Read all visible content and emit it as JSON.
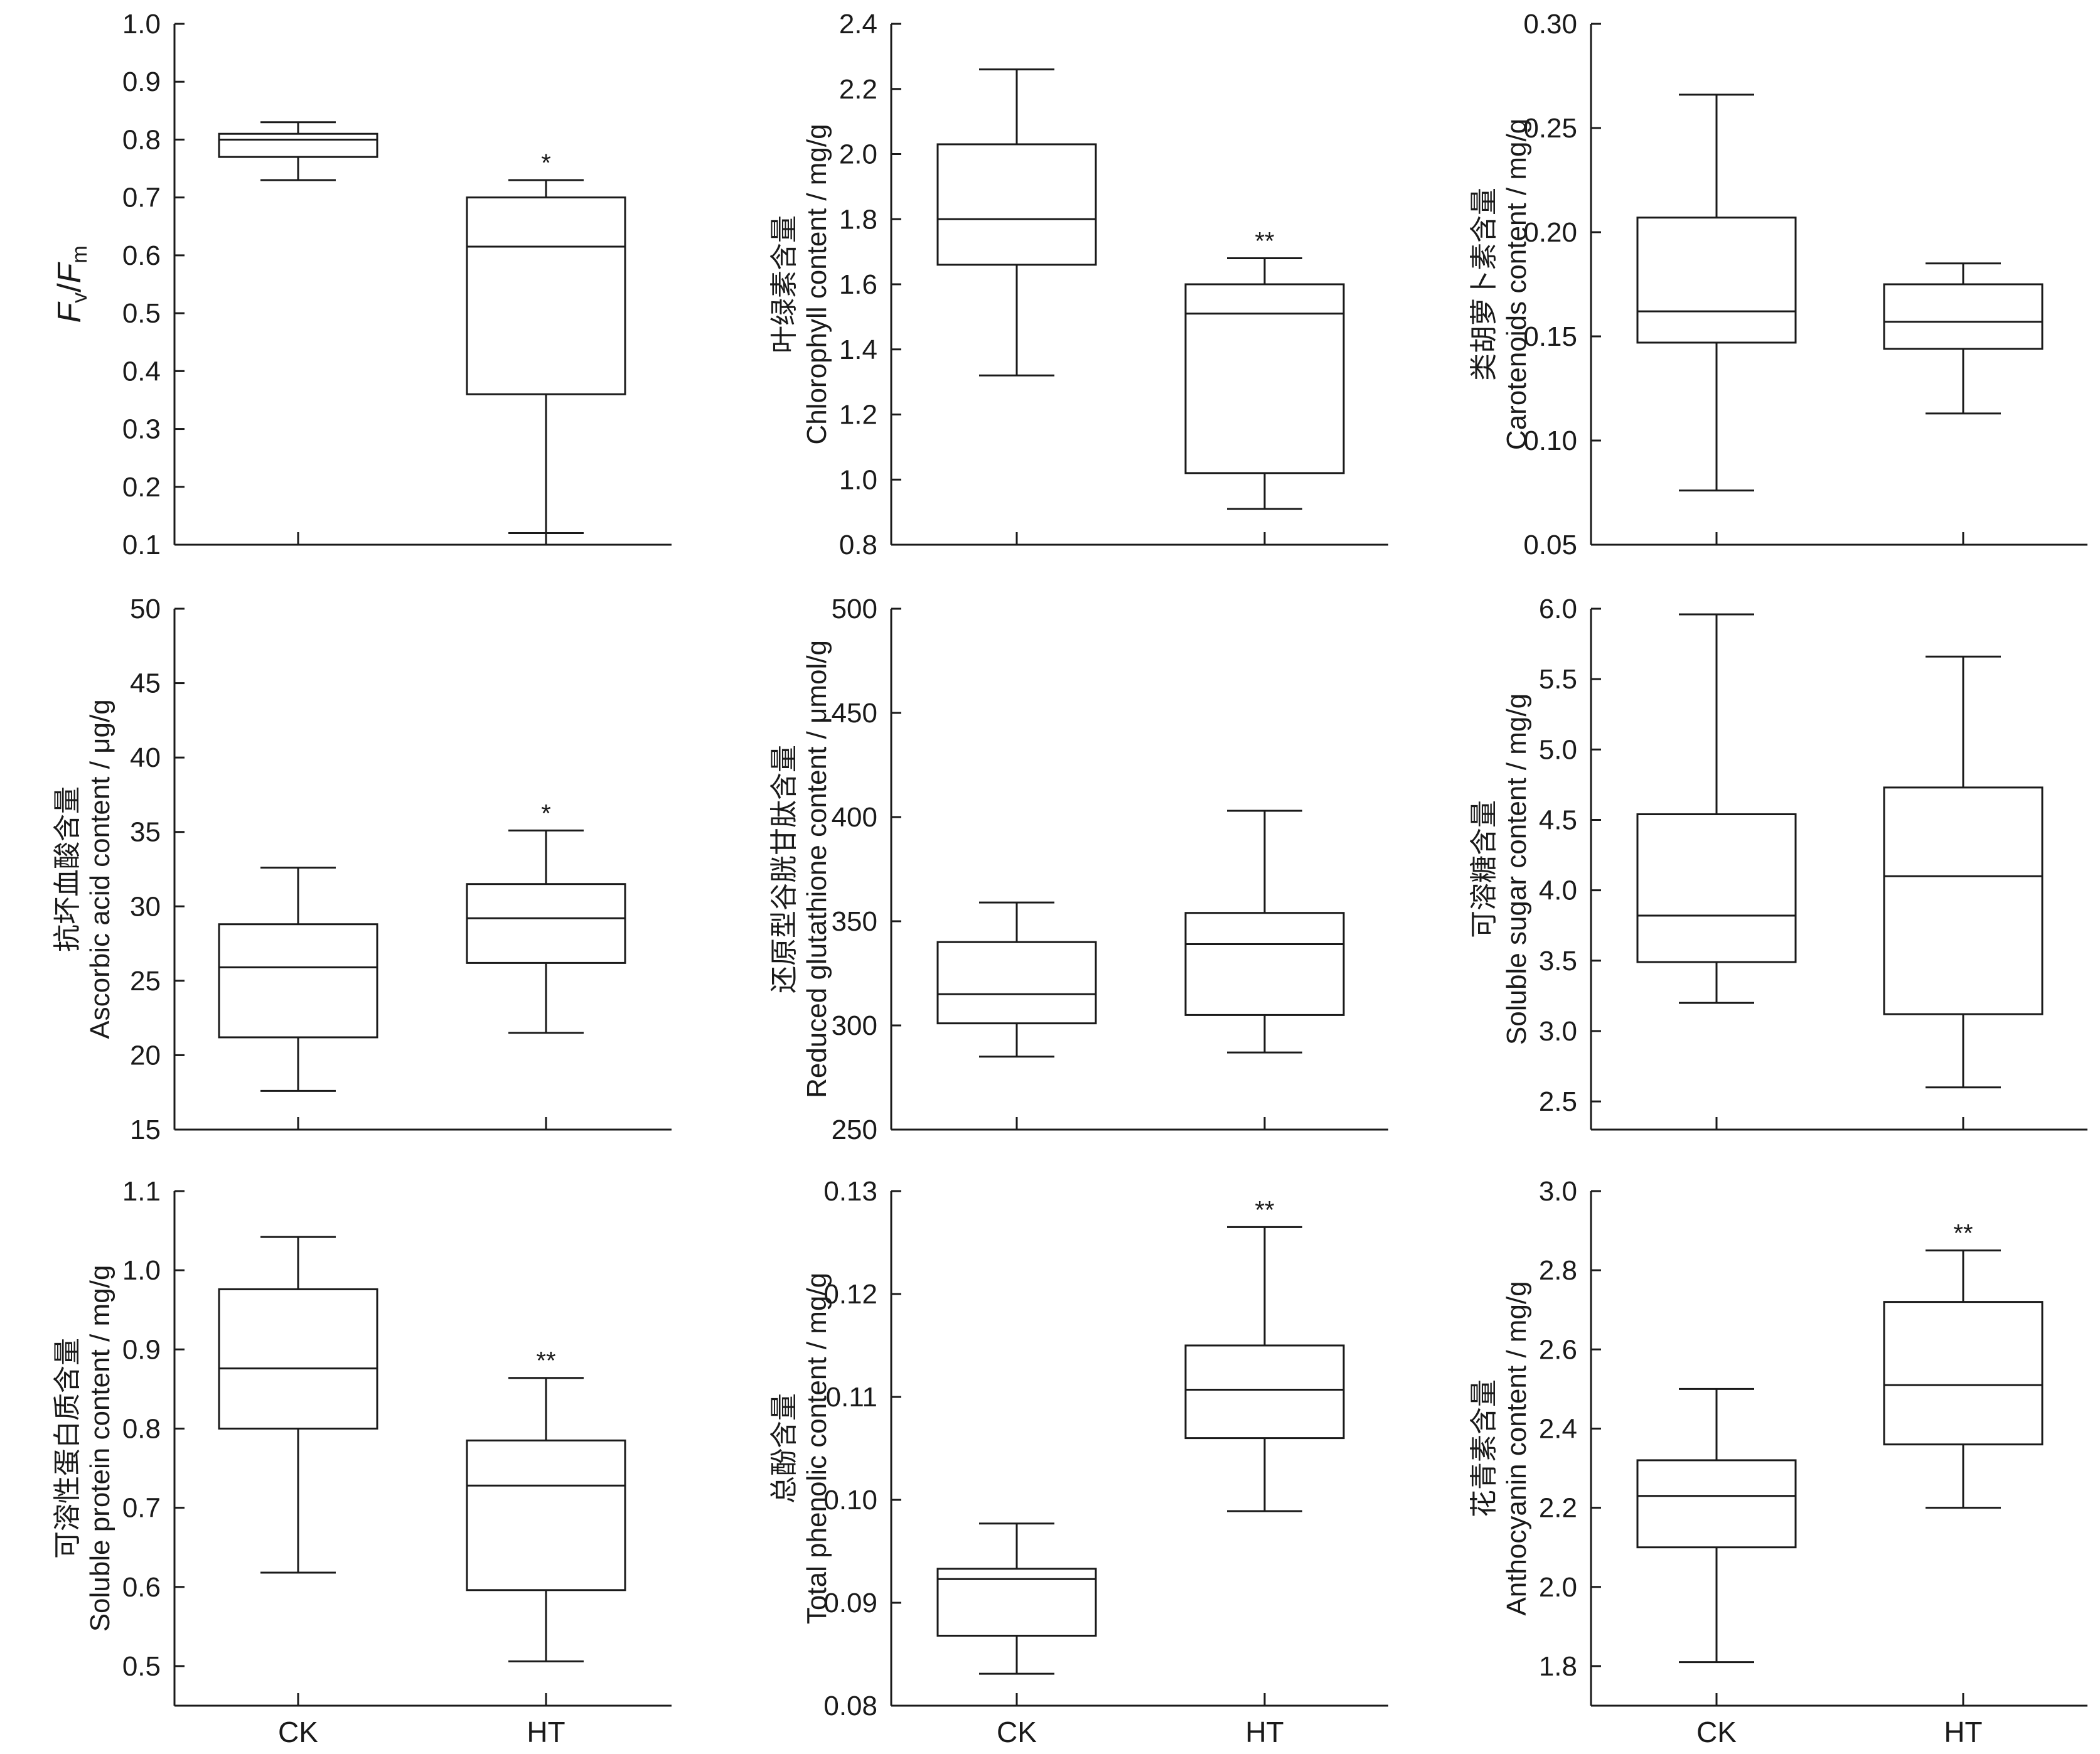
{
  "chart_data": [
    {
      "type": "box",
      "ylabel": {
        "zh": "",
        "en_parts": [
          "F",
          "v",
          "/",
          "F",
          "m"
        ]
      },
      "ylim": [
        0.1,
        1.0
      ],
      "yticks": [
        "0.1",
        "0.2",
        "0.3",
        "0.4",
        "0.5",
        "0.6",
        "0.7",
        "0.8",
        "0.9",
        "1.0"
      ],
      "categories": [
        "CK",
        "HT"
      ],
      "boxes": [
        {
          "category": "CK",
          "min": 0.73,
          "q1": 0.77,
          "median": 0.8,
          "q3": 0.81,
          "max": 0.83,
          "sig": ""
        },
        {
          "category": "HT",
          "min": 0.12,
          "q1": 0.36,
          "median": 0.615,
          "q3": 0.7,
          "max": 0.73,
          "sig": "*"
        }
      ]
    },
    {
      "type": "box",
      "ylabel": {
        "zh": "叶绿素含量",
        "en": "Chlorophyll content / mg/g"
      },
      "ylim": [
        0.8,
        2.4
      ],
      "yticks": [
        "0.8",
        "1.0",
        "1.2",
        "1.4",
        "1.6",
        "1.8",
        "2.0",
        "2.2",
        "2.4"
      ],
      "categories": [
        "CK",
        "HT"
      ],
      "boxes": [
        {
          "category": "CK",
          "min": 1.32,
          "q1": 1.66,
          "median": 1.8,
          "q3": 2.03,
          "max": 2.26,
          "sig": ""
        },
        {
          "category": "HT",
          "min": 0.91,
          "q1": 1.02,
          "median": 1.51,
          "q3": 1.6,
          "max": 1.68,
          "sig": "**"
        }
      ]
    },
    {
      "type": "box",
      "ylabel": {
        "zh": "类胡萝卜素含量",
        "en": "Carotenoids content / mg/g"
      },
      "ylim": [
        0.05,
        0.3
      ],
      "yticks": [
        "0.05",
        "0.10",
        "0.15",
        "0.20",
        "0.25",
        "0.30"
      ],
      "categories": [
        "CK",
        "HT"
      ],
      "boxes": [
        {
          "category": "CK",
          "min": 0.076,
          "q1": 0.147,
          "median": 0.162,
          "q3": 0.207,
          "max": 0.266,
          "sig": ""
        },
        {
          "category": "HT",
          "min": 0.113,
          "q1": 0.144,
          "median": 0.157,
          "q3": 0.175,
          "max": 0.185,
          "sig": ""
        }
      ]
    },
    {
      "type": "box",
      "ylabel": {
        "zh": "抗坏血酸含量",
        "en": "Ascorbic acid content / μg/g"
      },
      "ylim": [
        15,
        50
      ],
      "yticks": [
        "15",
        "20",
        "25",
        "30",
        "35",
        "40",
        "45",
        "50"
      ],
      "categories": [
        "CK",
        "HT"
      ],
      "boxes": [
        {
          "category": "CK",
          "min": 17.6,
          "q1": 21.2,
          "median": 25.9,
          "q3": 28.8,
          "max": 32.6,
          "sig": ""
        },
        {
          "category": "HT",
          "min": 21.5,
          "q1": 26.2,
          "median": 29.2,
          "q3": 31.5,
          "max": 35.1,
          "sig": "*"
        }
      ]
    },
    {
      "type": "box",
      "ylabel": {
        "zh": "还原型谷胱甘肽含量",
        "en": "Reduced glutathione content  / μmol/g"
      },
      "ylim": [
        250,
        500
      ],
      "yticks": [
        "250",
        "300",
        "350",
        "400",
        "450",
        "500"
      ],
      "categories": [
        "CK",
        "HT"
      ],
      "boxes": [
        {
          "category": "CK",
          "min": 285,
          "q1": 301,
          "median": 315,
          "q3": 340,
          "max": 359,
          "sig": ""
        },
        {
          "category": "HT",
          "min": 287,
          "q1": 305,
          "median": 339,
          "q3": 354,
          "max": 403,
          "sig": ""
        }
      ]
    },
    {
      "type": "box",
      "ylabel": {
        "zh": "可溶糖含量",
        "en": "Soluble sugar content / mg/g"
      },
      "ylim": [
        2.3,
        6.0
      ],
      "yticks": [
        "2.5",
        "3.0",
        "3.5",
        "4.0",
        "4.5",
        "5.0",
        "5.5",
        "6.0"
      ],
      "categories": [
        "CK",
        "HT"
      ],
      "boxes": [
        {
          "category": "CK",
          "min": 3.2,
          "q1": 3.49,
          "median": 3.82,
          "q3": 4.54,
          "max": 5.96,
          "sig": ""
        },
        {
          "category": "HT",
          "min": 2.6,
          "q1": 3.12,
          "median": 4.1,
          "q3": 4.73,
          "max": 5.66,
          "sig": ""
        }
      ]
    },
    {
      "type": "box",
      "ylabel": {
        "zh": "可溶性蛋白质含量",
        "en": "Soluble protein content  / mg/g"
      },
      "ylim": [
        0.45,
        1.1
      ],
      "yticks": [
        "0.5",
        "0.6",
        "0.7",
        "0.8",
        "0.9",
        "1.0",
        "1.1"
      ],
      "categories": [
        "CK",
        "HT"
      ],
      "boxes": [
        {
          "category": "CK",
          "min": 0.618,
          "q1": 0.8,
          "median": 0.876,
          "q3": 0.976,
          "max": 1.042,
          "sig": ""
        },
        {
          "category": "HT",
          "min": 0.506,
          "q1": 0.596,
          "median": 0.728,
          "q3": 0.785,
          "max": 0.864,
          "sig": "**"
        }
      ]
    },
    {
      "type": "box",
      "ylabel": {
        "zh": "总酚含量",
        "en": "Total phenolic content / mg/g"
      },
      "ylim": [
        0.08,
        0.13
      ],
      "yticks": [
        "0.08",
        "0.09",
        "0.10",
        "0.11",
        "0.12",
        "0.13"
      ],
      "categories": [
        "CK",
        "HT"
      ],
      "boxes": [
        {
          "category": "CK",
          "min": 0.0831,
          "q1": 0.0868,
          "median": 0.0923,
          "q3": 0.0933,
          "max": 0.0977,
          "sig": ""
        },
        {
          "category": "HT",
          "min": 0.0989,
          "q1": 0.106,
          "median": 0.1107,
          "q3": 0.115,
          "max": 0.1265,
          "sig": "**"
        }
      ]
    },
    {
      "type": "box",
      "ylabel": {
        "zh": "花青素含量",
        "en": "Anthocyanin content / mg/g"
      },
      "ylim": [
        1.7,
        3.0
      ],
      "yticks": [
        "1.8",
        "2.0",
        "2.2",
        "2.4",
        "2.6",
        "2.8",
        "3.0"
      ],
      "categories": [
        "CK",
        "HT"
      ],
      "boxes": [
        {
          "category": "CK",
          "min": 1.81,
          "q1": 2.1,
          "median": 2.23,
          "q3": 2.32,
          "max": 2.5,
          "sig": ""
        },
        {
          "category": "HT",
          "min": 2.2,
          "q1": 2.36,
          "median": 2.51,
          "q3": 2.72,
          "max": 2.85,
          "sig": "**"
        }
      ]
    }
  ]
}
